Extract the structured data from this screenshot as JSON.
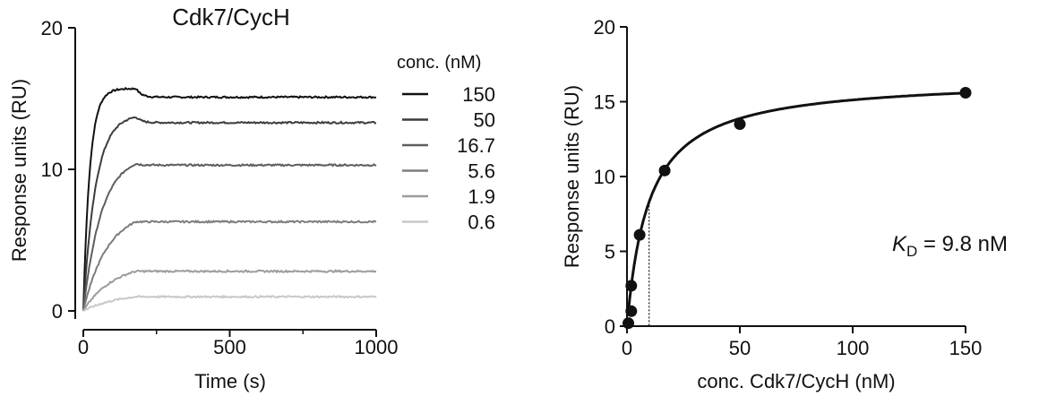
{
  "colors": {
    "axis": "#111111",
    "series": [
      "#111111",
      "#3d3d3d",
      "#5e5e5e",
      "#7d7d7d",
      "#9c9c9c",
      "#c8c8c8"
    ]
  },
  "chart_data": [
    {
      "type": "line",
      "title": "Cdk7/CycH",
      "xlabel": "Time (s)",
      "ylabel": "Response units (RU)",
      "xlim": [
        0,
        1000
      ],
      "ylim": [
        0,
        20
      ],
      "xticks": [
        0,
        500,
        1000
      ],
      "yticks": [
        0,
        10,
        20
      ],
      "grid": false,
      "legend": {
        "title": "conc. (nM)",
        "placement": "right"
      },
      "association_end_s": 180,
      "series": [
        {
          "name": "150",
          "plateau": 15.1,
          "peak": 15.7
        },
        {
          "name": "50",
          "plateau": 13.3,
          "peak": 13.7
        },
        {
          "name": "16.7",
          "plateau": 10.3,
          "peak": 10.4
        },
        {
          "name": "5.6",
          "plateau": 6.3,
          "peak": 6.3
        },
        {
          "name": "1.9",
          "plateau": 2.8,
          "peak": 2.8
        },
        {
          "name": "0.6",
          "plateau": 1.0,
          "peak": 1.0
        }
      ]
    },
    {
      "type": "scatter",
      "title": "",
      "xlabel": "conc. Cdk7/CycH (nM)",
      "ylabel": "Response units (RU)",
      "xlim": [
        0,
        150
      ],
      "ylim": [
        0,
        20
      ],
      "xticks": [
        0,
        50,
        100,
        150
      ],
      "yticks": [
        0,
        5,
        10,
        15,
        20
      ],
      "grid": false,
      "points": [
        {
          "x": 0.6,
          "y": 0.2
        },
        {
          "x": 1.9,
          "y": 1.0
        },
        {
          "x": 1.9,
          "y": 2.7
        },
        {
          "x": 5.6,
          "y": 6.1
        },
        {
          "x": 16.7,
          "y": 10.4
        },
        {
          "x": 50,
          "y": 13.5
        },
        {
          "x": 150,
          "y": 15.6
        }
      ],
      "fit": {
        "model": "one-site binding",
        "bmax": 16.6,
        "kd": 9.8
      },
      "annotation": {
        "symbol": "K",
        "subscript": "D",
        "text": " = 9.8 nM"
      }
    }
  ]
}
